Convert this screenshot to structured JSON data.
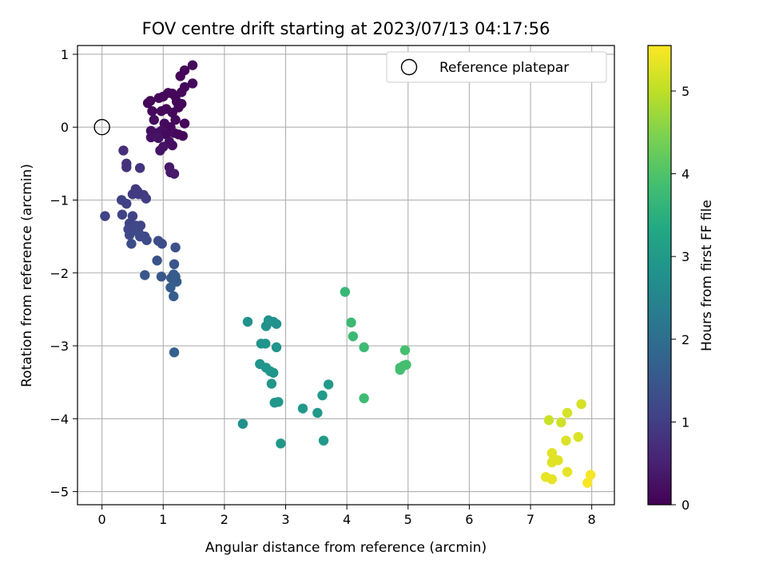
{
  "chart_data": {
    "type": "scatter",
    "title": "FOV centre drift starting at 2023/07/13 04:17:56",
    "xlabel": "Angular distance from reference (arcmin)",
    "ylabel": "Rotation from reference (arcmin)",
    "xlim": [
      -0.4,
      8.37
    ],
    "ylim": [
      -5.18,
      1.12
    ],
    "xticks": [
      0,
      1,
      2,
      3,
      4,
      5,
      6,
      7,
      8
    ],
    "yticks": [
      1,
      0,
      -1,
      -2,
      -3,
      -4,
      -5
    ],
    "ytick_labels": [
      "1",
      "0",
      "−1",
      "−2",
      "−3",
      "−4",
      "−5"
    ],
    "grid": true,
    "legend": {
      "position": "top-right",
      "entries": [
        "Reference platepar"
      ]
    },
    "colorbar": {
      "label": "Hours from first FF file",
      "colormap": "viridis",
      "range": [
        0,
        5.55
      ],
      "ticks": [
        0,
        1,
        2,
        3,
        4,
        5
      ]
    },
    "reference_point": {
      "x": 0,
      "y": 0
    },
    "series": [
      {
        "points": [
          [
            0.75,
            0.33,
            0.1
          ],
          [
            0.79,
            0.36,
            0.1
          ],
          [
            0.93,
            0.4,
            0.05
          ],
          [
            1.0,
            0.42,
            0.1
          ],
          [
            1.08,
            0.47,
            0.08
          ],
          [
            1.15,
            0.46,
            0.12
          ],
          [
            1.2,
            0.42,
            0.1
          ],
          [
            1.28,
            0.7,
            0.08
          ],
          [
            1.35,
            0.78,
            0.1
          ],
          [
            1.48,
            0.85,
            0.12
          ],
          [
            1.48,
            0.6,
            0.15
          ],
          [
            1.35,
            0.55,
            0.1
          ],
          [
            1.3,
            0.48,
            0.12
          ],
          [
            1.22,
            0.35,
            0.1
          ],
          [
            1.3,
            0.32,
            0.08
          ],
          [
            0.82,
            0.22,
            0.15
          ],
          [
            0.97,
            0.22,
            0.12
          ],
          [
            1.05,
            0.25,
            0.1
          ],
          [
            1.15,
            0.2,
            0.12
          ],
          [
            1.25,
            0.27,
            0.1
          ],
          [
            0.85,
            0.1,
            0.18
          ],
          [
            1.02,
            0.05,
            0.15
          ],
          [
            1.12,
            0.0,
            0.1
          ],
          [
            1.2,
            0.1,
            0.12
          ],
          [
            1.35,
            0.05,
            0.1
          ],
          [
            0.8,
            -0.05,
            0.2
          ],
          [
            0.9,
            -0.08,
            0.22
          ],
          [
            0.97,
            -0.05,
            0.2
          ],
          [
            1.05,
            -0.1,
            0.15
          ],
          [
            1.18,
            -0.08,
            0.18
          ],
          [
            1.25,
            -0.1,
            0.12
          ],
          [
            1.32,
            -0.12,
            0.1
          ],
          [
            0.8,
            -0.14,
            0.25
          ],
          [
            0.92,
            -0.15,
            0.28
          ],
          [
            1.1,
            -0.2,
            0.2
          ],
          [
            1.15,
            -0.25,
            0.22
          ],
          [
            1.0,
            -0.27,
            0.3
          ],
          [
            0.95,
            -0.32,
            0.3
          ],
          [
            1.1,
            -0.55,
            0.35
          ],
          [
            1.12,
            -0.62,
            0.38
          ],
          [
            1.18,
            -0.64,
            0.4
          ]
        ]
      },
      {
        "points": [
          [
            0.35,
            -0.32,
            0.75
          ],
          [
            0.4,
            -0.5,
            0.8
          ],
          [
            0.4,
            -0.55,
            0.8
          ],
          [
            0.62,
            -0.56,
            0.85
          ],
          [
            0.55,
            -0.85,
            0.9
          ],
          [
            0.58,
            -0.88,
            0.9
          ],
          [
            0.6,
            -0.92,
            0.95
          ],
          [
            0.5,
            -0.92,
            0.95
          ],
          [
            0.68,
            -0.93,
            0.95
          ],
          [
            0.72,
            -0.98,
            1.0
          ],
          [
            0.32,
            -1.0,
            1.05
          ],
          [
            0.4,
            -1.05,
            1.05
          ],
          [
            0.05,
            -1.22,
            1.1
          ],
          [
            0.33,
            -1.2,
            1.1
          ],
          [
            0.5,
            -1.22,
            1.1
          ],
          [
            0.45,
            -1.32,
            1.1
          ],
          [
            0.55,
            -1.35,
            1.15
          ],
          [
            0.63,
            -1.35,
            1.15
          ],
          [
            0.43,
            -1.4,
            1.15
          ],
          [
            0.55,
            -1.4,
            1.2
          ],
          [
            0.6,
            -1.45,
            1.2
          ],
          [
            0.7,
            -1.5,
            1.2
          ],
          [
            0.45,
            -1.48,
            1.2
          ],
          [
            0.62,
            -1.5,
            1.25
          ],
          [
            0.73,
            -1.55,
            1.25
          ],
          [
            0.48,
            -1.6,
            1.3
          ],
          [
            0.92,
            -1.56,
            1.3
          ],
          [
            0.98,
            -1.6,
            1.3
          ],
          [
            1.2,
            -1.65,
            1.35
          ],
          [
            0.9,
            -1.83,
            1.4
          ],
          [
            1.18,
            -1.88,
            1.45
          ],
          [
            0.7,
            -2.03,
            1.5
          ],
          [
            0.97,
            -2.05,
            1.5
          ],
          [
            1.13,
            -2.07,
            1.55
          ],
          [
            1.17,
            -2.02,
            1.55
          ],
          [
            1.2,
            -2.05,
            1.6
          ],
          [
            1.22,
            -2.12,
            1.6
          ],
          [
            1.12,
            -2.2,
            1.65
          ],
          [
            1.17,
            -2.32,
            1.65
          ],
          [
            1.18,
            -3.09,
            1.7
          ]
        ]
      },
      {
        "points": [
          [
            2.38,
            -2.67,
            2.8
          ],
          [
            2.72,
            -2.65,
            2.8
          ],
          [
            2.8,
            -2.67,
            2.8
          ],
          [
            2.85,
            -2.7,
            2.8
          ],
          [
            2.68,
            -2.73,
            2.8
          ],
          [
            2.6,
            -2.97,
            2.85
          ],
          [
            2.67,
            -2.97,
            2.85
          ],
          [
            2.85,
            -3.02,
            2.85
          ],
          [
            2.58,
            -3.25,
            2.85
          ],
          [
            2.68,
            -3.3,
            2.85
          ],
          [
            2.75,
            -3.35,
            2.9
          ],
          [
            2.8,
            -3.37,
            2.9
          ],
          [
            2.77,
            -3.52,
            2.9
          ],
          [
            2.82,
            -3.78,
            2.9
          ],
          [
            2.88,
            -3.77,
            2.9
          ],
          [
            3.28,
            -3.86,
            2.95
          ],
          [
            3.52,
            -3.92,
            2.95
          ],
          [
            3.6,
            -3.68,
            3.0
          ],
          [
            3.7,
            -3.53,
            3.0
          ],
          [
            2.3,
            -4.07,
            2.75
          ],
          [
            2.92,
            -4.34,
            2.95
          ],
          [
            3.62,
            -4.3,
            3.0
          ]
        ]
      },
      {
        "points": [
          [
            3.97,
            -2.26,
            3.7
          ],
          [
            4.07,
            -2.68,
            3.75
          ],
          [
            4.1,
            -2.87,
            3.75
          ],
          [
            4.28,
            -3.02,
            3.8
          ],
          [
            4.28,
            -3.72,
            3.8
          ],
          [
            4.87,
            -3.3,
            3.85
          ],
          [
            4.87,
            -3.33,
            3.85
          ],
          [
            4.93,
            -3.27,
            3.9
          ],
          [
            4.97,
            -3.26,
            3.9
          ],
          [
            4.95,
            -3.06,
            3.9
          ]
        ]
      },
      {
        "points": [
          [
            7.3,
            -4.02,
            5.1
          ],
          [
            7.5,
            -4.05,
            5.15
          ],
          [
            7.6,
            -3.92,
            5.2
          ],
          [
            7.83,
            -3.8,
            5.2
          ],
          [
            7.78,
            -4.25,
            5.25
          ],
          [
            7.58,
            -4.3,
            5.25
          ],
          [
            7.35,
            -4.47,
            5.3
          ],
          [
            7.38,
            -4.55,
            5.3
          ],
          [
            7.45,
            -4.57,
            5.3
          ],
          [
            7.35,
            -4.6,
            5.3
          ],
          [
            7.6,
            -4.73,
            5.35
          ],
          [
            7.25,
            -4.8,
            5.35
          ],
          [
            7.35,
            -4.83,
            5.35
          ],
          [
            7.98,
            -4.77,
            5.5
          ],
          [
            7.93,
            -4.88,
            5.5
          ]
        ]
      }
    ]
  }
}
